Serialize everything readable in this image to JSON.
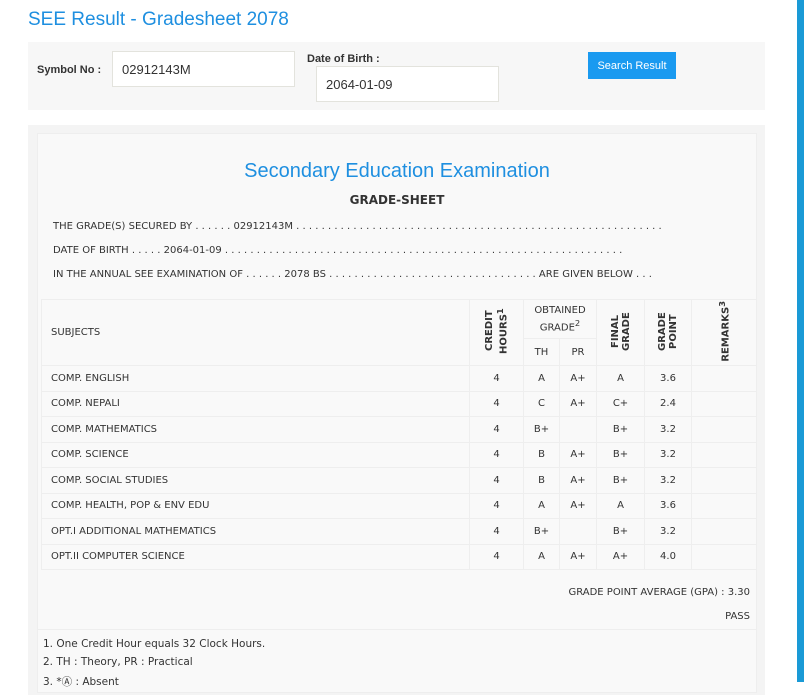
{
  "page_title": "SEE Result - Gradesheet 2078",
  "form": {
    "symbol_label": "Symbol No :",
    "symbol_value": "02912143M",
    "dob_label": "Date of Birth :",
    "dob_value": "2064-01-09",
    "search_label": "Search Result"
  },
  "sheet": {
    "exam_title": "Secondary Education Examination",
    "heading": "GRADE-SHEET",
    "line1": "THE GRADE(S) SECURED BY . . . . . . 02912143M . . . . . . . . . . . . . . . . . . . . . . . . . . . . . . . . . . . . . . . . . . . . . . . . . . . . . . . . . .",
    "line2": "DATE OF BIRTH . . . . . 2064-01-09 . . . . . . . . . . . . . . . . . . . . . . . . . . . . . . . . . . . . . . . . . . . . . . . . . . . . . . . . . . . . . . .",
    "line3": "IN THE ANNUAL SEE EXAMINATION OF . . . . . . 2078 BS . . . . . . . . . . . . . . . . . . . . . . . . . . . . . . . . . ARE GIVEN BELOW . . .",
    "headers": {
      "subjects": "SUBJECTS",
      "credit": "CREDIT HOURS",
      "credit_sup": "1",
      "obtained": "OBTAINED GRADE",
      "obtained_sup": "2",
      "th": "TH",
      "pr": "PR",
      "final": "FINAL GRADE",
      "point": "GRADE POINT",
      "remarks": "REMARKS",
      "remarks_sup": "3"
    },
    "rows": [
      [
        "COMP. ENGLISH",
        "4",
        "A",
        "A+",
        "A",
        "3.6"
      ],
      [
        "COMP. NEPALI",
        "4",
        "C",
        "A+",
        "C+",
        "2.4"
      ],
      [
        "COMP. MATHEMATICS",
        "4",
        "B+",
        "",
        "B+",
        "3.2"
      ],
      [
        "COMP. SCIENCE",
        "4",
        "B",
        "A+",
        "B+",
        "3.2"
      ],
      [
        "COMP. SOCIAL STUDIES",
        "4",
        "B",
        "A+",
        "B+",
        "3.2"
      ],
      [
        "COMP. HEALTH, POP & ENV EDU",
        "4",
        "A",
        "A+",
        "A",
        "3.6"
      ],
      [
        "OPT.I ADDITIONAL MATHEMATICS",
        "4",
        "B+",
        "",
        "B+",
        "3.2"
      ],
      [
        "OPT.II COMPUTER SCIENCE",
        "4",
        "A",
        "A+",
        "A+",
        "4.0"
      ]
    ],
    "gpa": "GRADE POINT AVERAGE (GPA) : 3.30",
    "result": "PASS",
    "notes": [
      "1. One Credit Hour equals 32 Clock Hours.",
      "2. TH : Theory, PR : Practical",
      "3. *Ⓐ : Absent"
    ]
  },
  "colors": {
    "accent": "#1e8fe0",
    "button": "#1a9af0",
    "side_bar": "#1a9ad6"
  }
}
